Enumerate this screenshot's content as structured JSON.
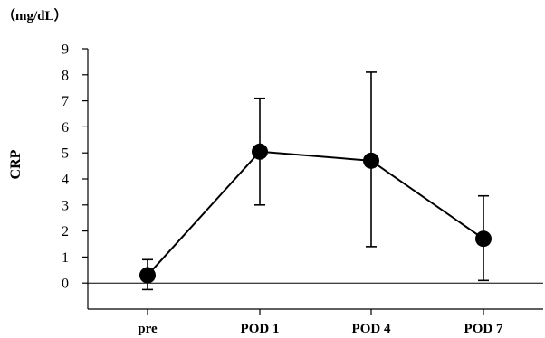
{
  "chart_data": {
    "type": "line",
    "title": "",
    "xlabel": "",
    "ylabel": "CRP",
    "unit_label": "（mg/dL）",
    "categories": [
      "pre",
      "POD 1",
      "POD 4",
      "POD 7"
    ],
    "ylim": [
      -1,
      9
    ],
    "yticks": [
      0,
      1,
      2,
      3,
      4,
      5,
      6,
      7,
      8,
      9
    ],
    "grid": false,
    "series": [
      {
        "values": [
          0.3,
          5.05,
          4.7,
          1.7
        ],
        "err_low": [
          -0.25,
          3.0,
          1.4,
          0.1
        ],
        "err_high": [
          0.9,
          7.1,
          8.1,
          3.35
        ],
        "color": "#000000"
      }
    ]
  }
}
